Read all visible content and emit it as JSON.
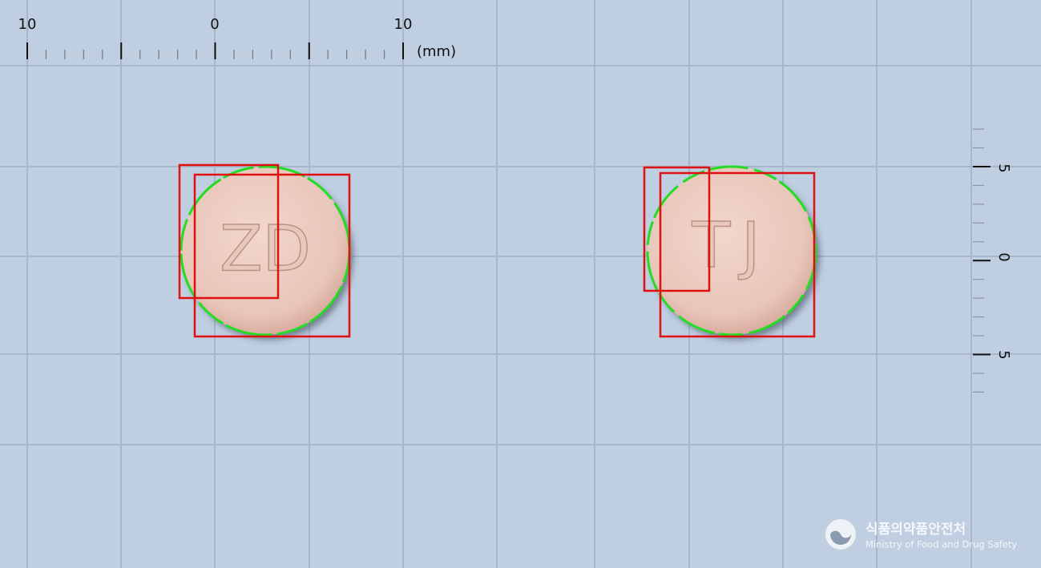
{
  "ruler_top": {
    "labels": [
      "10",
      "0",
      "10"
    ],
    "unit": "(mm)"
  },
  "ruler_right": {
    "labels": [
      "5",
      "0",
      "5"
    ]
  },
  "pills": [
    {
      "imprint": "ZD"
    },
    {
      "imprint": "TJ"
    }
  ],
  "logo": {
    "korean": "식품의약품안전처",
    "english": "Ministry of Food and Drug Safety"
  }
}
